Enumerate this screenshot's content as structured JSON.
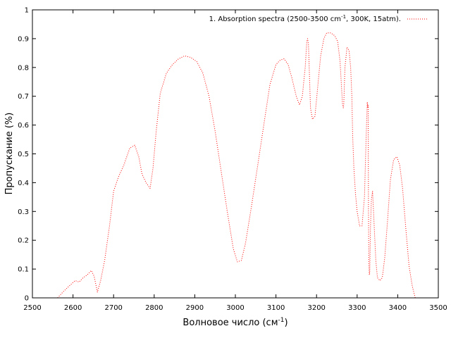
{
  "chart_data": {
    "type": "line",
    "xlabel": {
      "main": "Волновое число (см",
      "sup": "-1",
      "end": ")"
    },
    "ylabel": "Пропускание (%)",
    "xlim": [
      2500,
      3500
    ],
    "ylim": [
      0,
      1
    ],
    "xticks": [
      2500,
      2600,
      2700,
      2800,
      2900,
      3000,
      3100,
      3200,
      3300,
      3400,
      3500
    ],
    "yticks": [
      0,
      0.1,
      0.2,
      0.3,
      0.4,
      0.5,
      0.6,
      0.7,
      0.8,
      0.9,
      1
    ],
    "ytick_labels": [
      "0",
      "0.1",
      "0.2",
      "0.3",
      "0.4",
      "0.5",
      "0.6",
      "0.7",
      "0.8",
      "0.9",
      "1"
    ],
    "grid": false,
    "legend_position": "top-right",
    "legend": {
      "main": "1. Absorption spectra (2500-3500 cm",
      "sup": "-1",
      "end": ", 300K, 15atm)."
    },
    "series": [
      {
        "color": "#ff0000",
        "style": "dotted",
        "x": [
          2562,
          2575,
          2590,
          2605,
          2615,
          2625,
          2635,
          2645,
          2652,
          2660,
          2668,
          2678,
          2690,
          2700,
          2712,
          2725,
          2740,
          2752,
          2762,
          2770,
          2780,
          2790,
          2797,
          2805,
          2815,
          2830,
          2845,
          2860,
          2875,
          2890,
          2905,
          2920,
          2935,
          2950,
          2965,
          2980,
          2995,
          3005,
          3015,
          3025,
          3040,
          3055,
          3070,
          3085,
          3100,
          3110,
          3120,
          3130,
          3140,
          3150,
          3158,
          3165,
          3172,
          3176,
          3178,
          3180,
          3182,
          3185,
          3190,
          3196,
          3202,
          3210,
          3218,
          3225,
          3235,
          3245,
          3252,
          3258,
          3262,
          3264,
          3265,
          3266,
          3267,
          3270,
          3275,
          3280,
          3284,
          3287,
          3289,
          3292,
          3296,
          3300,
          3306,
          3312,
          3318,
          3322,
          3325,
          3326,
          3327,
          3328,
          3329,
          3330,
          3331,
          3333,
          3335,
          3338,
          3342,
          3346,
          3350,
          3356,
          3362,
          3368,
          3375,
          3382,
          3390,
          3398,
          3405,
          3412,
          3420,
          3428,
          3436,
          3443
        ],
        "values": [
          0.0,
          0.02,
          0.04,
          0.06,
          0.055,
          0.07,
          0.08,
          0.095,
          0.075,
          0.02,
          0.06,
          0.13,
          0.25,
          0.37,
          0.42,
          0.46,
          0.52,
          0.53,
          0.49,
          0.43,
          0.4,
          0.38,
          0.45,
          0.58,
          0.71,
          0.78,
          0.81,
          0.83,
          0.84,
          0.835,
          0.82,
          0.78,
          0.7,
          0.58,
          0.44,
          0.3,
          0.17,
          0.125,
          0.13,
          0.19,
          0.32,
          0.46,
          0.6,
          0.74,
          0.81,
          0.825,
          0.83,
          0.81,
          0.76,
          0.7,
          0.67,
          0.7,
          0.8,
          0.89,
          0.9,
          0.88,
          0.8,
          0.66,
          0.62,
          0.63,
          0.72,
          0.84,
          0.9,
          0.92,
          0.92,
          0.91,
          0.89,
          0.82,
          0.72,
          0.67,
          0.665,
          0.66,
          0.67,
          0.8,
          0.87,
          0.86,
          0.8,
          0.7,
          0.56,
          0.45,
          0.36,
          0.3,
          0.25,
          0.25,
          0.35,
          0.55,
          0.68,
          0.66,
          0.67,
          0.3,
          0.12,
          0.08,
          0.09,
          0.25,
          0.34,
          0.37,
          0.25,
          0.13,
          0.07,
          0.06,
          0.07,
          0.14,
          0.27,
          0.41,
          0.48,
          0.49,
          0.46,
          0.38,
          0.24,
          0.11,
          0.04,
          0.0
        ]
      }
    ]
  }
}
